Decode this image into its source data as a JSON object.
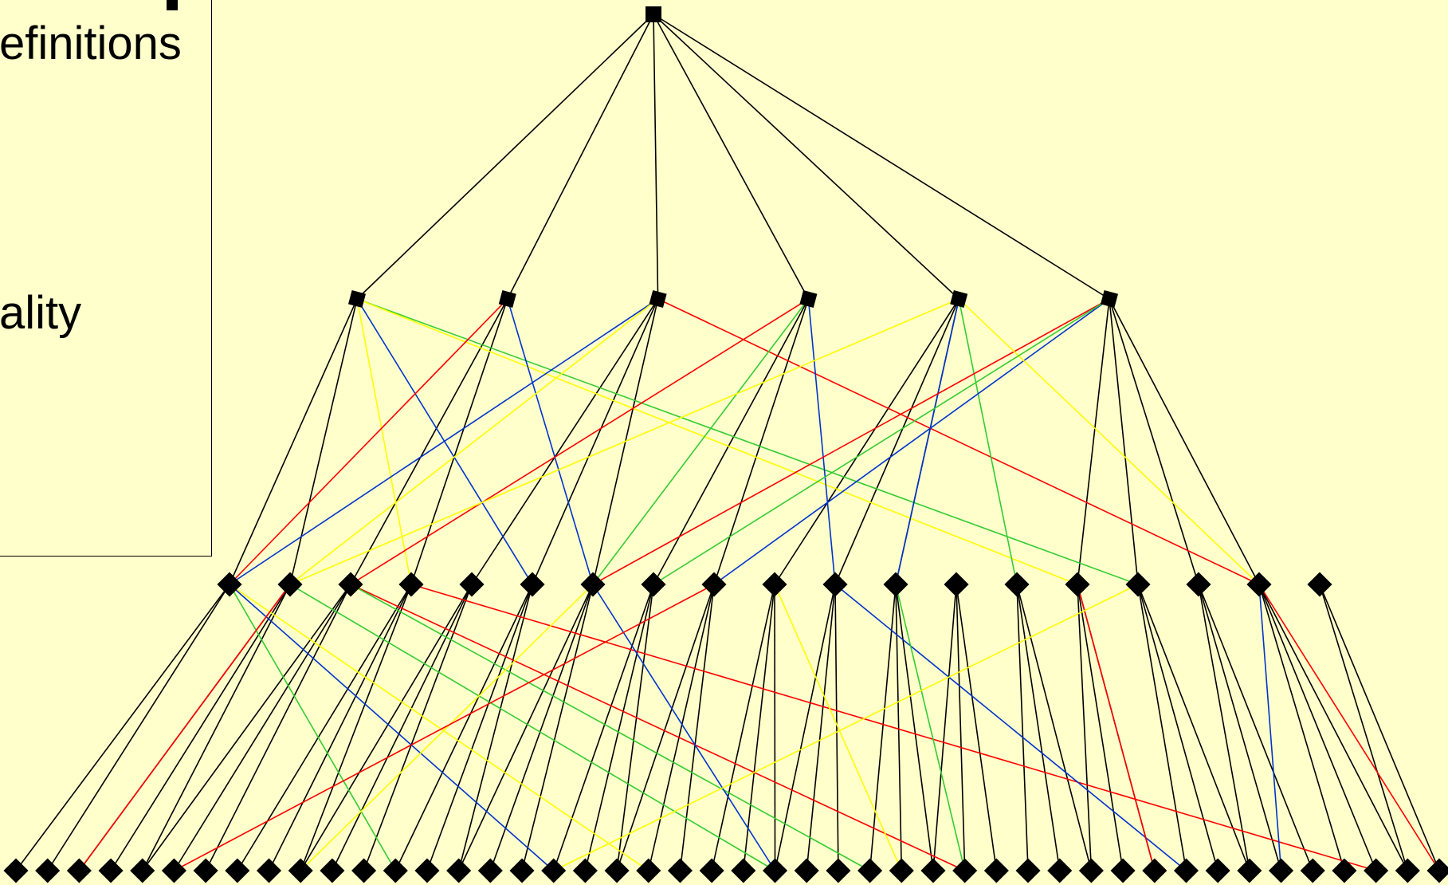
{
  "text_box": {
    "fragment_1": "efinitions",
    "fragment_2": "ality"
  },
  "colors": {
    "background": "#ffffcc",
    "tree_edge": "#000000",
    "node": "#000000",
    "link_yellow": "#ffff00",
    "link_red": "#ff0000",
    "link_blue": "#0033cc",
    "link_green": "#33cc33"
  },
  "graph": {
    "levels": 4,
    "nodes_per_level": [
      1,
      6,
      19,
      46
    ],
    "edges": [
      [
        0,
        0,
        1,
        0
      ],
      [
        0,
        0,
        1,
        1
      ],
      [
        0,
        0,
        1,
        2
      ],
      [
        0,
        0,
        1,
        3
      ],
      [
        0,
        0,
        1,
        4
      ],
      [
        0,
        0,
        1,
        5
      ],
      [
        1,
        0,
        2,
        0
      ],
      [
        1,
        0,
        2,
        1
      ],
      [
        1,
        1,
        2,
        3
      ],
      [
        1,
        1,
        2,
        2
      ],
      [
        1,
        2,
        2,
        4
      ],
      [
        1,
        2,
        2,
        5
      ],
      [
        1,
        2,
        2,
        6
      ],
      [
        1,
        3,
        2,
        7
      ],
      [
        1,
        3,
        2,
        8
      ],
      [
        1,
        4,
        2,
        10
      ],
      [
        1,
        4,
        2,
        11
      ],
      [
        1,
        4,
        2,
        9
      ],
      [
        1,
        5,
        2,
        14
      ],
      [
        1,
        5,
        2,
        15
      ],
      [
        1,
        5,
        2,
        16
      ],
      [
        1,
        5,
        2,
        17
      ]
    ],
    "cross_links": [
      [
        "yellow",
        1,
        0,
        2,
        3
      ],
      [
        "blue",
        1,
        0,
        2,
        5
      ],
      [
        "green",
        1,
        0,
        2,
        15
      ],
      [
        "yellow",
        1,
        0,
        2,
        14
      ],
      [
        "red",
        1,
        1,
        2,
        0
      ],
      [
        "blue",
        1,
        1,
        2,
        6
      ],
      [
        "red",
        1,
        2,
        2,
        17
      ],
      [
        "blue",
        1,
        2,
        2,
        0
      ],
      [
        "yellow",
        1,
        2,
        2,
        1
      ],
      [
        "red",
        1,
        3,
        2,
        2
      ],
      [
        "green",
        1,
        3,
        2,
        6
      ],
      [
        "blue",
        1,
        3,
        2,
        10
      ],
      [
        "yellow",
        1,
        4,
        2,
        1
      ],
      [
        "blue",
        1,
        4,
        2,
        11
      ],
      [
        "green",
        1,
        4,
        2,
        13
      ],
      [
        "red",
        1,
        5,
        2,
        6
      ],
      [
        "blue",
        1,
        5,
        2,
        8
      ],
      [
        "yellow",
        1,
        4,
        2,
        17
      ],
      [
        "green",
        1,
        5,
        2,
        7
      ],
      [
        "yellow",
        2,
        0,
        3,
        20
      ],
      [
        "blue",
        2,
        0,
        3,
        17
      ],
      [
        "green",
        2,
        0,
        3,
        12
      ],
      [
        "red",
        2,
        1,
        3,
        2
      ],
      [
        "green",
        2,
        1,
        3,
        24
      ],
      [
        "red",
        2,
        2,
        3,
        30
      ],
      [
        "green",
        2,
        2,
        3,
        27
      ],
      [
        "red",
        2,
        3,
        3,
        43
      ],
      [
        "blue",
        2,
        6,
        3,
        24
      ],
      [
        "yellow",
        2,
        6,
        3,
        9
      ],
      [
        "red",
        2,
        8,
        3,
        5
      ],
      [
        "yellow",
        2,
        9,
        3,
        28
      ],
      [
        "blue",
        2,
        10,
        3,
        37
      ],
      [
        "green",
        2,
        11,
        3,
        30
      ],
      [
        "red",
        2,
        14,
        3,
        36
      ],
      [
        "yellow",
        2,
        15,
        3,
        17
      ],
      [
        "blue",
        2,
        17,
        3,
        40
      ],
      [
        "red",
        2,
        17,
        3,
        45
      ]
    ]
  }
}
